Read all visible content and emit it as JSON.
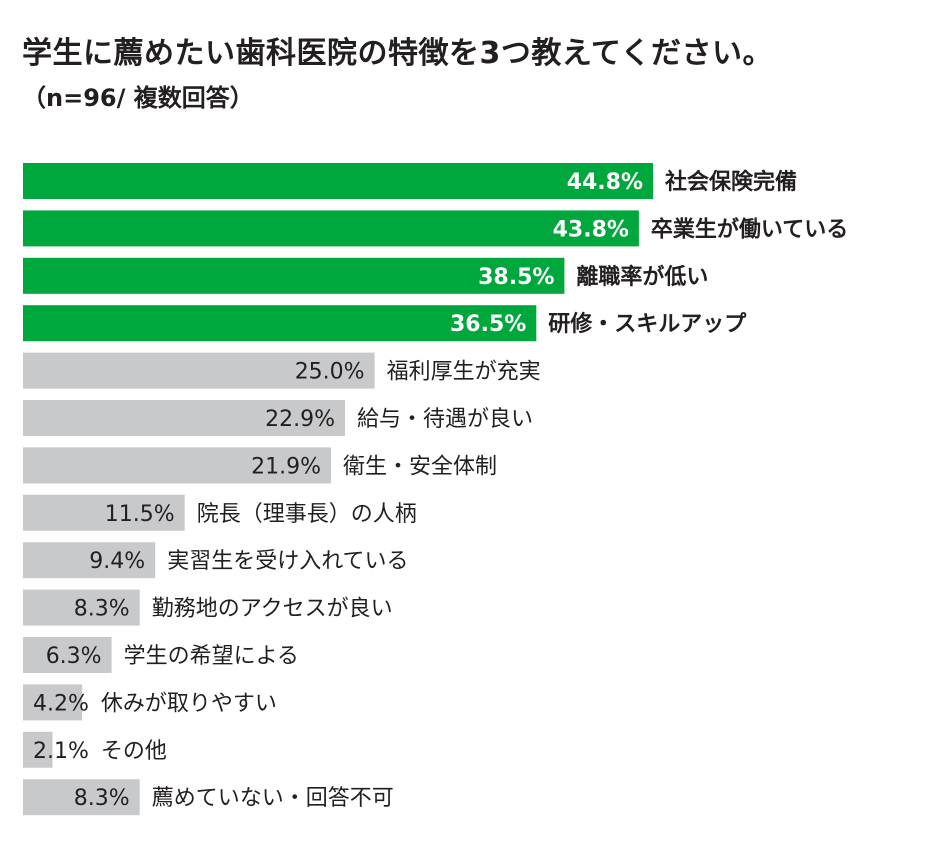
{
  "chart_data": {
    "type": "bar",
    "orientation": "horizontal",
    "title": "学生に薦めたい歯科医院の特徴を3つ教えてください。",
    "subtitle": "（n=96/ 複数回答）",
    "categories": [
      "社会保険完備",
      "卒業生が働いている",
      "離職率が低い",
      "研修・スキルアップ",
      "福利厚生が充実",
      "給与・待遇が良い",
      "衛生・安全体制",
      "院長（理事長）の人柄",
      "実習生を受け入れている",
      "勤務地のアクセスが良い",
      "学生の希望による",
      "休みが取りやすい",
      "その他",
      "薦めていない・回答不可"
    ],
    "values": [
      44.8,
      43.8,
      38.5,
      36.5,
      25.0,
      22.9,
      21.9,
      11.5,
      9.4,
      8.3,
      6.3,
      4.2,
      2.1,
      8.3
    ],
    "value_labels": [
      "44.8%",
      "43.8%",
      "38.5%",
      "36.5%",
      "25.0%",
      "22.9%",
      "21.9%",
      "11.5%",
      "9.4%",
      "8.3%",
      "6.3%",
      "4.2%",
      "2.1%",
      "8.3%"
    ],
    "highlighted": [
      true,
      true,
      true,
      true,
      false,
      false,
      false,
      false,
      false,
      false,
      false,
      false,
      false,
      false
    ],
    "colors": {
      "highlight": "#00a73c",
      "normal": "#c8c9ca",
      "highlight_text": "#ffffff",
      "normal_text": "#231f20",
      "label_text": "#231f20"
    },
    "xlim": [
      0,
      100
    ],
    "grid": false,
    "legend": "none"
  }
}
